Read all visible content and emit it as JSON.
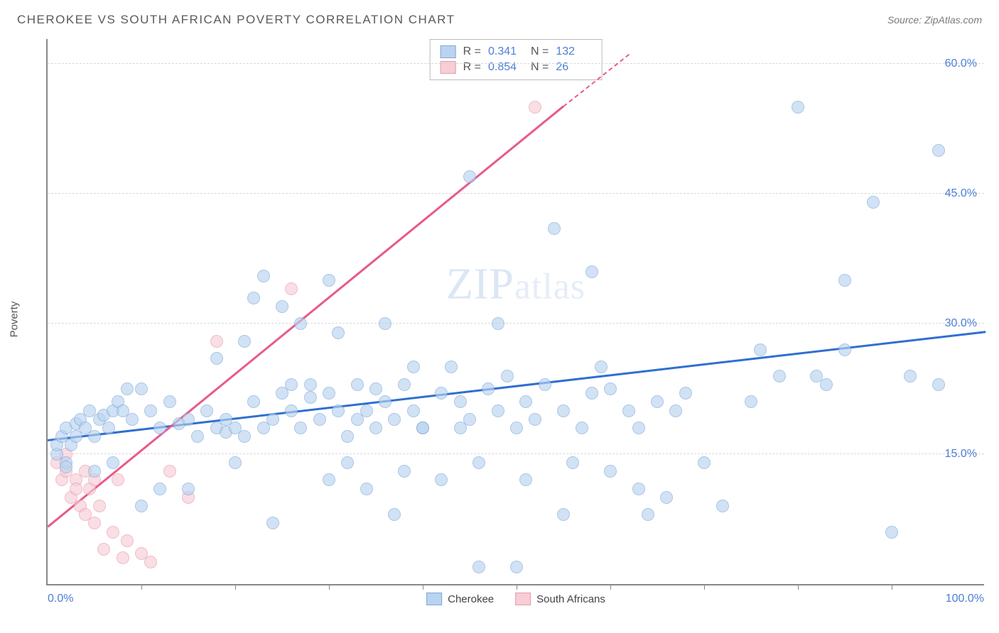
{
  "header": {
    "title": "CHEROKEE VS SOUTH AFRICAN POVERTY CORRELATION CHART",
    "source_prefix": "Source:",
    "source_name": "ZipAtlas.com"
  },
  "watermark": {
    "part1": "ZIP",
    "part2": "atlas"
  },
  "axes": {
    "ylabel": "Poverty",
    "x_min_label": "0.0%",
    "x_max_label": "100.0%",
    "y_ticks": [
      {
        "value": 15.0,
        "label": "15.0%"
      },
      {
        "value": 30.0,
        "label": "30.0%"
      },
      {
        "value": 45.0,
        "label": "45.0%"
      },
      {
        "value": 60.0,
        "label": "60.0%"
      }
    ],
    "x_ticks": [
      10,
      20,
      30,
      40,
      50,
      60,
      70,
      80,
      90
    ],
    "y_domain": [
      0,
      63
    ],
    "x_domain": [
      0,
      100
    ]
  },
  "styling": {
    "grid_color": "#d8d8d8",
    "axis_color": "#888888",
    "tick_label_color": "#4a7fd6",
    "dot_radius": 9,
    "dot_opacity": 0.65
  },
  "series": {
    "cherokee": {
      "label": "Cherokee",
      "fill": "#b9d3f0",
      "stroke": "#7fa8d9",
      "trend_color": "#2f6fd0",
      "R": "0.341",
      "N": "132",
      "trend": {
        "x1": 0,
        "y1": 16.5,
        "x2": 100,
        "y2": 29.0
      },
      "points": [
        [
          1,
          15
        ],
        [
          1,
          16
        ],
        [
          1.5,
          17
        ],
        [
          2,
          14
        ],
        [
          2,
          13.5
        ],
        [
          2,
          18
        ],
        [
          2.5,
          16
        ],
        [
          3,
          17
        ],
        [
          3,
          18.5
        ],
        [
          3.5,
          19
        ],
        [
          4,
          18
        ],
        [
          4.5,
          20
        ],
        [
          5,
          17
        ],
        [
          5,
          13
        ],
        [
          5.5,
          19
        ],
        [
          6,
          19.5
        ],
        [
          6.5,
          18
        ],
        [
          7,
          20
        ],
        [
          7,
          14
        ],
        [
          7.5,
          21
        ],
        [
          8,
          20
        ],
        [
          8.5,
          22.5
        ],
        [
          9,
          19
        ],
        [
          10,
          22.5
        ],
        [
          10,
          9
        ],
        [
          11,
          20
        ],
        [
          12,
          18
        ],
        [
          12,
          11
        ],
        [
          13,
          21
        ],
        [
          14,
          18.5
        ],
        [
          15,
          19
        ],
        [
          15,
          11
        ],
        [
          16,
          17
        ],
        [
          17,
          20
        ],
        [
          18,
          18
        ],
        [
          18,
          26
        ],
        [
          19,
          17.5
        ],
        [
          19,
          19
        ],
        [
          20,
          14
        ],
        [
          20,
          18
        ],
        [
          21,
          17
        ],
        [
          21,
          28
        ],
        [
          22,
          21
        ],
        [
          22,
          33
        ],
        [
          23,
          18
        ],
        [
          23,
          35.5
        ],
        [
          24,
          19
        ],
        [
          24,
          7
        ],
        [
          25,
          22
        ],
        [
          25,
          32
        ],
        [
          26,
          20
        ],
        [
          26,
          23
        ],
        [
          27,
          18
        ],
        [
          27,
          30
        ],
        [
          28,
          21.5
        ],
        [
          28,
          23
        ],
        [
          29,
          19
        ],
        [
          30,
          22
        ],
        [
          30,
          12
        ],
        [
          30,
          35
        ],
        [
          31,
          20
        ],
        [
          31,
          29
        ],
        [
          32,
          17
        ],
        [
          32,
          14
        ],
        [
          33,
          23
        ],
        [
          33,
          19
        ],
        [
          34,
          20
        ],
        [
          34,
          11
        ],
        [
          35,
          22.5
        ],
        [
          35,
          18
        ],
        [
          36,
          21
        ],
        [
          36,
          30
        ],
        [
          37,
          19
        ],
        [
          37,
          8
        ],
        [
          38,
          23
        ],
        [
          38,
          13
        ],
        [
          39,
          20
        ],
        [
          39,
          25
        ],
        [
          40,
          18
        ],
        [
          40,
          18
        ],
        [
          42,
          22
        ],
        [
          42,
          12
        ],
        [
          43,
          25
        ],
        [
          44,
          21
        ],
        [
          44,
          18
        ],
        [
          45,
          19
        ],
        [
          45,
          47
        ],
        [
          46,
          2
        ],
        [
          46,
          14
        ],
        [
          47,
          22.5
        ],
        [
          48,
          20
        ],
        [
          48,
          30
        ],
        [
          49,
          24
        ],
        [
          50,
          18
        ],
        [
          50,
          2
        ],
        [
          51,
          21
        ],
        [
          51,
          12
        ],
        [
          52,
          19
        ],
        [
          53,
          23
        ],
        [
          54,
          41
        ],
        [
          55,
          20
        ],
        [
          55,
          8
        ],
        [
          56,
          14
        ],
        [
          57,
          18
        ],
        [
          58,
          22
        ],
        [
          58,
          36
        ],
        [
          59,
          25
        ],
        [
          60,
          13
        ],
        [
          60,
          22.5
        ],
        [
          62,
          20
        ],
        [
          63,
          18
        ],
        [
          63,
          11
        ],
        [
          64,
          8
        ],
        [
          65,
          21
        ],
        [
          66,
          10
        ],
        [
          67,
          20
        ],
        [
          68,
          22
        ],
        [
          70,
          14
        ],
        [
          72,
          9
        ],
        [
          75,
          21
        ],
        [
          76,
          27
        ],
        [
          78,
          24
        ],
        [
          80,
          55
        ],
        [
          82,
          24
        ],
        [
          83,
          23
        ],
        [
          85,
          27
        ],
        [
          85,
          35
        ],
        [
          88,
          44
        ],
        [
          90,
          6
        ],
        [
          92,
          24
        ],
        [
          95,
          50
        ],
        [
          95,
          23
        ]
      ]
    },
    "south_africans": {
      "label": "South Africans",
      "fill": "#f7cdd6",
      "stroke": "#e89aad",
      "trend_color": "#e85a8a",
      "R": "0.854",
      "N": "26",
      "trend_solid": {
        "x1": 0,
        "y1": 6.5,
        "x2": 55,
        "y2": 55
      },
      "trend_dashed": {
        "x1": 55,
        "y1": 55,
        "x2": 62,
        "y2": 61
      },
      "points": [
        [
          1,
          14
        ],
        [
          1.5,
          12
        ],
        [
          2,
          13
        ],
        [
          2,
          15
        ],
        [
          2.5,
          10
        ],
        [
          3,
          12
        ],
        [
          3,
          11
        ],
        [
          3.5,
          9
        ],
        [
          4,
          13
        ],
        [
          4,
          8
        ],
        [
          4.5,
          11
        ],
        [
          5,
          12
        ],
        [
          5,
          7
        ],
        [
          5.5,
          9
        ],
        [
          6,
          4
        ],
        [
          7,
          6
        ],
        [
          7.5,
          12
        ],
        [
          8,
          3
        ],
        [
          8.5,
          5
        ],
        [
          10,
          3.5
        ],
        [
          11,
          2.5
        ],
        [
          13,
          13
        ],
        [
          15,
          10
        ],
        [
          18,
          28
        ],
        [
          26,
          34
        ],
        [
          52,
          55
        ]
      ]
    }
  }
}
